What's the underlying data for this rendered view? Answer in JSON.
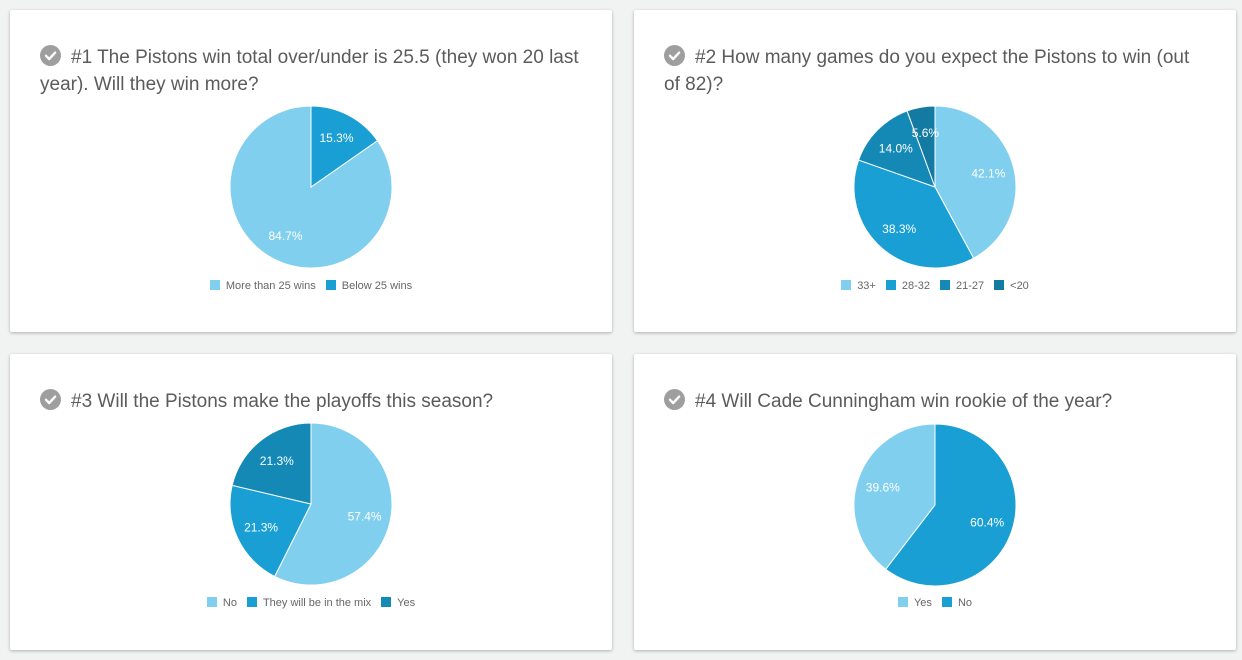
{
  "colors": [
    "#81cfef",
    "#1a9fd4",
    "#1589b6",
    "#137aa2"
  ],
  "questions": [
    {
      "title": "#1 The Pistons win total over/under is 25.5 (they won 20 last year). Will they win more?"
    },
    {
      "title": "#2 How many games do you expect the Pistons to win (out of 82)?"
    },
    {
      "title": "#3 Will the Pistons make the playoffs this season?"
    },
    {
      "title": "#4 Will Cade Cunningham win rookie of the year?"
    }
  ],
  "chart_data": [
    {
      "type": "pie",
      "title": "#1 The Pistons win total over/under is 25.5 (they won 20 last year). Will they win more?",
      "categories": [
        "More than 25 wins",
        "Below 25 wins"
      ],
      "values": [
        84.7,
        15.3
      ],
      "labels": [
        "84.7%",
        "15.3%"
      ],
      "legend": "bottom"
    },
    {
      "type": "pie",
      "title": "#2 How many games do you expect the Pistons to win (out of 82)?",
      "categories": [
        "33+",
        "28-32",
        "21-27",
        "<20"
      ],
      "values": [
        42.1,
        38.3,
        14.0,
        5.6
      ],
      "labels": [
        "42.1%",
        "38.3%",
        "14.0%",
        "5.6%"
      ],
      "legend": "bottom"
    },
    {
      "type": "pie",
      "title": "#3 Will the Pistons make the playoffs this season?",
      "categories": [
        "No",
        "They will be in the mix",
        "Yes"
      ],
      "values": [
        57.4,
        21.3,
        21.3
      ],
      "labels": [
        "57.4%",
        "21.3%",
        "21.3%"
      ],
      "legend": "bottom"
    },
    {
      "type": "pie",
      "title": "#4 Will Cade Cunningham win rookie of the year?",
      "categories": [
        "Yes",
        "No"
      ],
      "values": [
        39.6,
        60.4
      ],
      "labels": [
        "39.6%",
        "60.4%"
      ],
      "legend": "bottom"
    }
  ]
}
